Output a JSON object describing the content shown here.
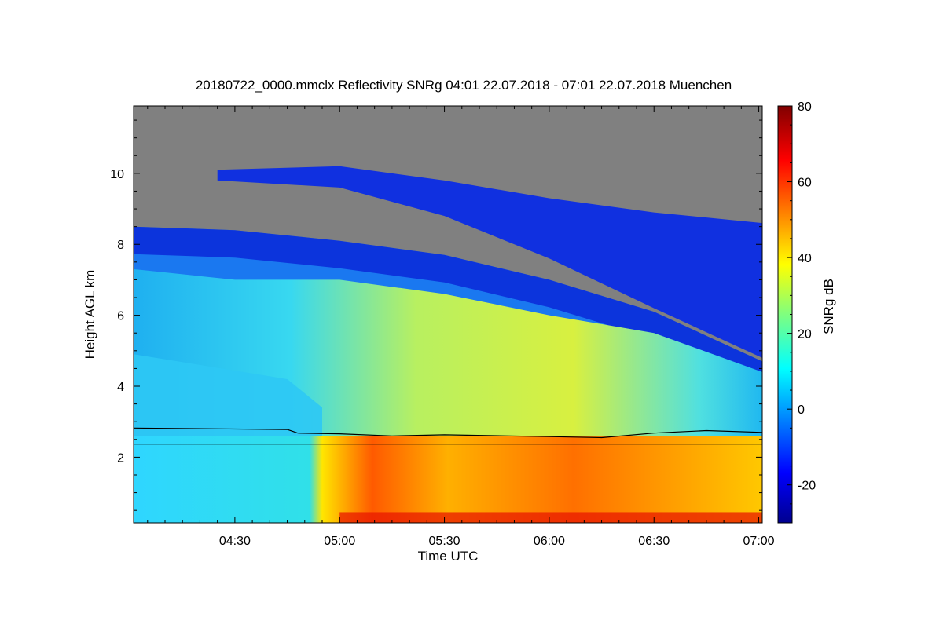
{
  "chart_data": {
    "type": "heatmap",
    "title": "20180722_0000.mmclx Reflectivity SNRg   04:01 22.07.2018 - 07:01 22.07.2018 Muenchen",
    "xlabel": "Time UTC",
    "ylabel": "Height AGL km",
    "xlim": [
      "04:01",
      "07:01"
    ],
    "ylim": [
      0.15,
      11.9
    ],
    "x_ticks": [
      "04:30",
      "05:00",
      "05:30",
      "06:00",
      "06:30",
      "07:00"
    ],
    "y_ticks": [
      "2",
      "4",
      "6",
      "8",
      "10"
    ],
    "colorbar": {
      "label": "SNRg dB",
      "range": [
        -30,
        80
      ],
      "ticks": [
        "-20",
        "0",
        "20",
        "40",
        "60",
        "80"
      ],
      "colormap": "jet",
      "no_signal_color": "#808080"
    },
    "lines": [
      {
        "style": "solid-black",
        "description_values_km": [
          [
            "04:01",
            2.82
          ],
          [
            "04:45",
            2.78
          ],
          [
            "04:48",
            2.68
          ],
          [
            "05:00",
            2.66
          ],
          [
            "05:15",
            2.6
          ],
          [
            "05:30",
            2.63
          ],
          [
            "06:00",
            2.58
          ],
          [
            "06:15",
            2.55
          ],
          [
            "06:30",
            2.68
          ],
          [
            "06:45",
            2.75
          ],
          [
            "07:01",
            2.7
          ]
        ]
      },
      {
        "style": "solid-black",
        "description_values_km": [
          [
            "04:01",
            2.37
          ],
          [
            "07:01",
            2.37
          ]
        ]
      }
    ],
    "features": {
      "signal_top_km": [
        [
          "04:01",
          8.5
        ],
        [
          "04:30",
          8.4
        ],
        [
          "05:00",
          8.1
        ],
        [
          "05:30",
          7.7
        ],
        [
          "06:00",
          7.0
        ],
        [
          "06:30",
          6.1
        ],
        [
          "07:01",
          4.7
        ]
      ],
      "upper_layer_top_km": [
        [
          "04:25",
          10.1
        ],
        [
          "05:00",
          10.2
        ],
        [
          "05:30",
          9.8
        ],
        [
          "06:00",
          9.3
        ],
        [
          "06:30",
          8.9
        ],
        [
          "07:01",
          8.6
        ]
      ],
      "upper_layer_base_km": [
        [
          "04:25",
          9.8
        ],
        [
          "05:00",
          9.6
        ],
        [
          "05:30",
          8.8
        ],
        [
          "06:00",
          7.6
        ],
        [
          "06:30",
          6.2
        ],
        [
          "07:01",
          4.8
        ]
      ]
    }
  }
}
